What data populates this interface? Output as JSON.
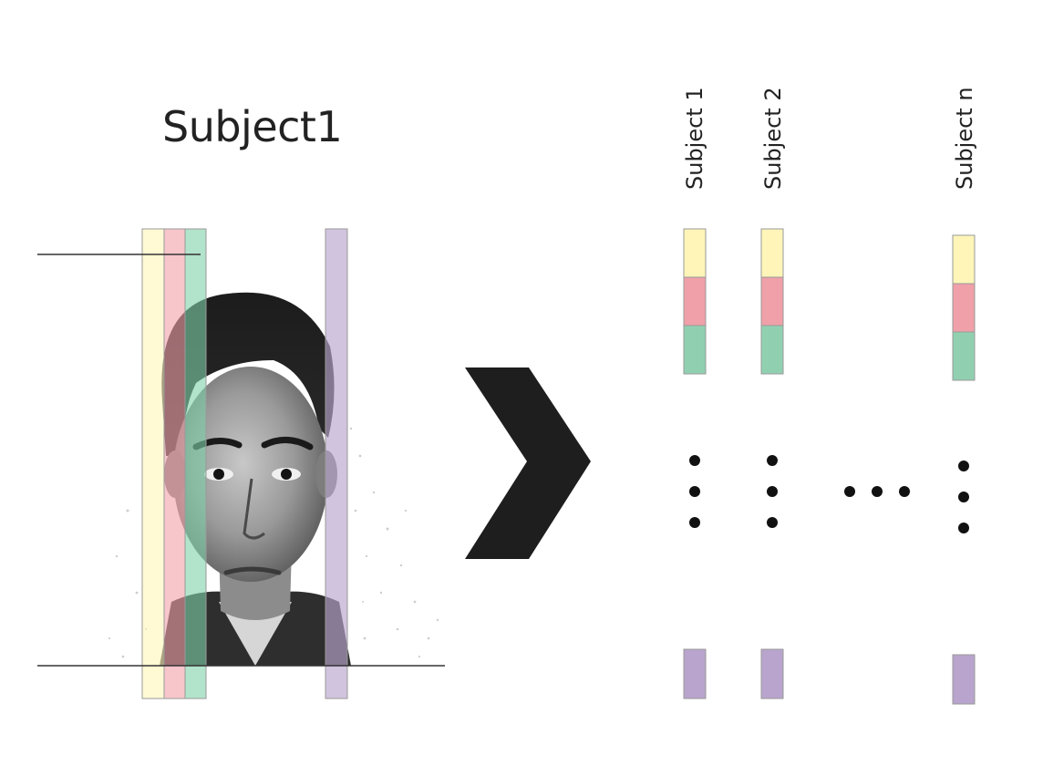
{
  "left": {
    "title": "Subject1",
    "strip_colors": [
      "#fff5b8",
      "#f0a0a8",
      "#90d0b0",
      "#b8a4cc"
    ]
  },
  "right": {
    "columns": [
      {
        "label": "Subject 1"
      },
      {
        "label": "Subject 2"
      },
      {
        "label": "Subject n"
      }
    ],
    "segment_colors": {
      "yellow": "#fff5b8",
      "pink": "#f0a0a8",
      "green": "#90d0b0",
      "purple": "#b8a4cc"
    }
  },
  "colors": {
    "arrow": "#1e1e1e",
    "line": "#222222",
    "text": "#222222"
  }
}
